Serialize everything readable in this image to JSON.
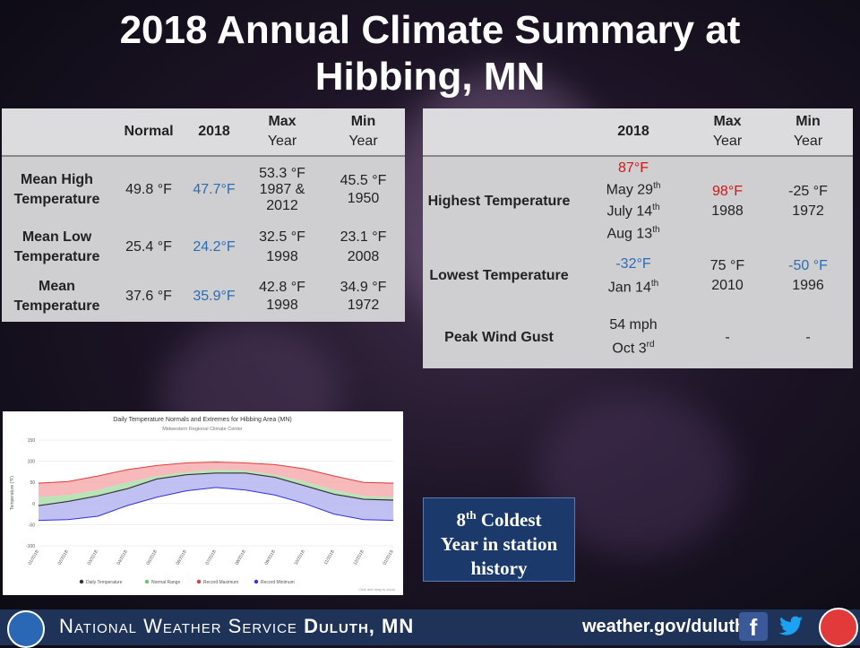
{
  "title_line1": "2018 Annual Climate Summary at",
  "title_line2": "Hibbing, MN",
  "left_table": {
    "headers": [
      "",
      "Normal",
      "2018",
      "Max\nYear",
      "Min\nYear"
    ],
    "rows": [
      {
        "label": "Mean High Temperature",
        "normal": "49.8 °F",
        "y2018": "47.7°F",
        "max": "53.3 °F\n1987 &\n2012",
        "min": "45.5 °F\n1950"
      },
      {
        "label": "Mean Low Temperature",
        "normal": "25.4 °F",
        "y2018": "24.2°F",
        "max": "32.5 °F\n1998",
        "min": "23.1 °F\n2008"
      },
      {
        "label": "Mean Temperature",
        "normal": "37.6 °F",
        "y2018": "35.9°F",
        "max": "42.8 °F\n1998",
        "min": "34.9 °F\n1972"
      }
    ]
  },
  "right_table": {
    "headers": [
      "",
      "2018",
      "Max\nYear",
      "Min\nYear"
    ],
    "rows": [
      {
        "label": "Highest Temperature",
        "y2018_value": "87°F",
        "y2018_dates": [
          "May 29th",
          "July 14th",
          "Aug 13th"
        ],
        "max": "98°F\n1988",
        "min": "-25 °F\n1972"
      },
      {
        "label": "Lowest Temperature",
        "y2018_value": "-32°F",
        "y2018_dates": [
          "Jan 14th"
        ],
        "max": "75 °F\n2010",
        "min": "-50 °F\n1996"
      },
      {
        "label": "Peak Wind Gust",
        "y2018_value": "54 mph",
        "y2018_dates": [
          "Oct 3rd"
        ],
        "max": "-",
        "min": "-"
      }
    ]
  },
  "chart_data": {
    "type": "line",
    "title": "Daily Temperature Normals and Extremes for Hibbing Area (MN)",
    "subtitle": "Midwestern Regional Climate Center",
    "ylabel": "Temperature (°F)",
    "ylim": [
      -100,
      150
    ],
    "y_ticks": [
      150,
      100,
      50,
      0,
      -50,
      -100
    ],
    "categories": [
      "01/2018",
      "02/2018",
      "03/2018",
      "04/2018",
      "05/2018",
      "06/2018",
      "07/2018",
      "08/2018",
      "09/2018",
      "10/2018",
      "11/2018",
      "12/2018",
      "01/2019"
    ],
    "series": [
      {
        "name": "Record Maximum",
        "values": [
          48,
          52,
          65,
          80,
          90,
          96,
          98,
          96,
          92,
          82,
          65,
          50,
          48
        ]
      },
      {
        "name": "Normal Range",
        "values": [
          15,
          20,
          32,
          50,
          65,
          74,
          80,
          78,
          68,
          52,
          32,
          18,
          15
        ]
      },
      {
        "name": "Daily Temperature",
        "values": [
          -5,
          5,
          18,
          35,
          58,
          68,
          72,
          72,
          62,
          42,
          22,
          10,
          8
        ]
      },
      {
        "name": "Record Minimum",
        "values": [
          -40,
          -38,
          -30,
          -5,
          15,
          30,
          38,
          32,
          20,
          0,
          -25,
          -38,
          -40
        ]
      }
    ],
    "legend": [
      "Daily Temperature",
      "Normal Range",
      "Record Maximum",
      "Record Minimum"
    ],
    "footnote": "Click and drag to zoom",
    "colors": {
      "max": "#e33b3b",
      "normal": "#6fbf6f",
      "min": "#3131e0",
      "daily": "#333333"
    }
  },
  "badge": {
    "line1_num": "8",
    "line1_sup": "th",
    "line1_rest": " Coldest",
    "line2": "Year in station",
    "line3": "history"
  },
  "footer": {
    "org": "National Weather Service",
    "office": "Duluth, MN",
    "url": "weather.gov/duluth",
    "fb": "f",
    "left_logo_icon": "noaa-logo-icon",
    "right_logo_icon": "nws-logo-icon"
  }
}
